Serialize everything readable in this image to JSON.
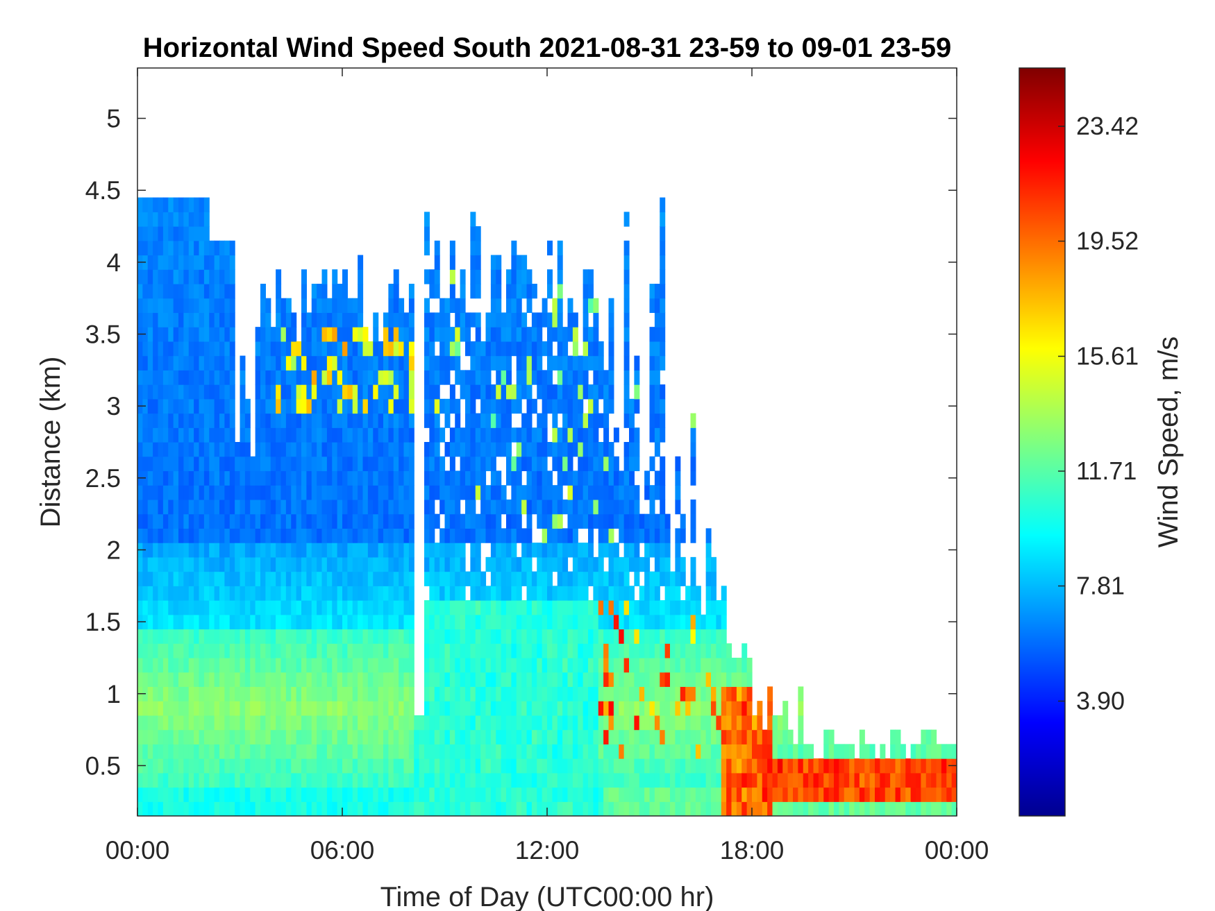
{
  "chart_data": {
    "type": "heatmap",
    "title": "Horizontal Wind Speed South 2021-08-31 23-59 to 09-01 23-59",
    "xlabel": "Time of Day (UTC00:00 hr)",
    "ylabel": "Distance (km)",
    "x_unit": "hours",
    "xlim": [
      0,
      24
    ],
    "ylim": [
      0.15,
      5.35
    ],
    "x_ticks": [
      0,
      6,
      12,
      18,
      24
    ],
    "x_tick_labels": [
      "00:00",
      "06:00",
      "12:00",
      "18:00",
      "00:00"
    ],
    "y_ticks": [
      0.5,
      1,
      1.5,
      2,
      2.5,
      3,
      3.5,
      4,
      4.5,
      5
    ],
    "y_tick_labels": [
      "0.5",
      "1",
      "1.5",
      "2",
      "2.5",
      "3",
      "3.5",
      "4",
      "4.5",
      "5"
    ],
    "colorbar": {
      "label": "Wind Speed, m/s",
      "colormap": "jet",
      "range": [
        0,
        25.4
      ],
      "ticks": [
        3.9,
        7.81,
        11.71,
        15.61,
        19.52,
        23.42
      ],
      "tick_labels": [
        "3.90",
        "7.81",
        "11.71",
        "15.61",
        "19.52",
        "23.42"
      ]
    },
    "grid": false,
    "notes_visible": "Wind speed is highest (red/orange, ~20–23 m/s) below 0.5 km after 18:00; lower levels 0–1.5 km show cyan/green (~10–14 m/s); upper levels (2–4.4 km) are mostly blue (~4–8 m/s) with scattered yellow patches near 3–3.5 km between 04:00 and 08:00.",
    "regions": [
      {
        "x": [
          0,
          2
        ],
        "y": [
          0.15,
          4.4
        ],
        "level": "profile-early"
      },
      {
        "x": [
          2,
          3
        ],
        "y": [
          0.15,
          4.1
        ],
        "level": "profile-early"
      },
      {
        "x": [
          3,
          8
        ],
        "y": [
          0.15,
          3.8
        ],
        "level": "profile-morning"
      },
      {
        "x": [
          8,
          13.5
        ],
        "y": [
          0.15,
          4.2
        ],
        "level": "profile-midday"
      },
      {
        "x": [
          13.5,
          17
        ],
        "y": [
          0.15,
          4.6
        ],
        "level": "profile-afternoon"
      },
      {
        "x": [
          17,
          19
        ],
        "y": [
          0.15,
          1.1
        ],
        "level": "profile-evening"
      },
      {
        "x": [
          19,
          24
        ],
        "y": [
          0.15,
          0.5
        ],
        "level": "profile-night"
      }
    ]
  }
}
